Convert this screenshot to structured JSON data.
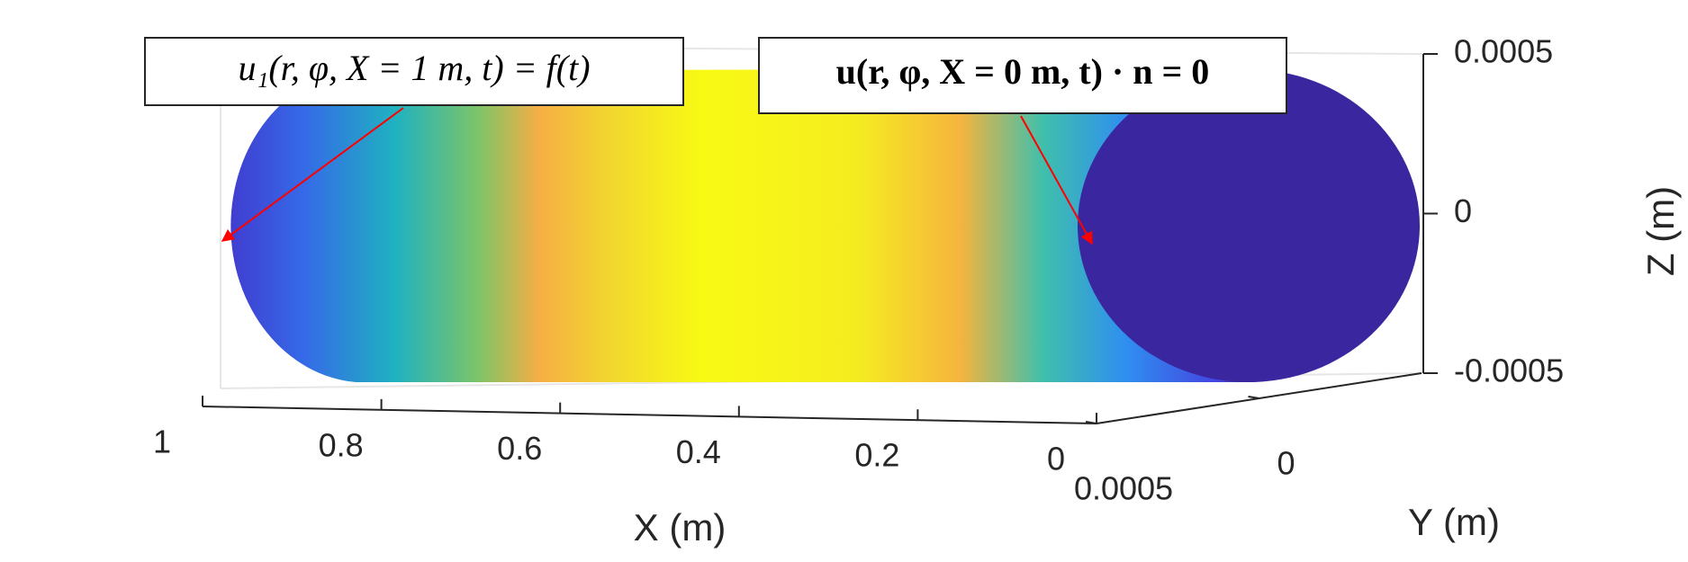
{
  "chart_data": {
    "type": "surface",
    "annotations": [
      "u₁(r, φ, X = 1 m, t) = f(t)",
      "u(r, φ, X = 0 m, t) · n = 0"
    ],
    "xlabel": "X (m)",
    "ylabel": "Y (m)",
    "zlabel": "Z (m)",
    "xlim": [
      0,
      1
    ],
    "xticks": [
      1,
      0.8,
      0.6,
      0.4,
      0.2,
      0
    ],
    "ylim": [
      -0.0005,
      0.0005
    ],
    "yticks": [
      0.0005,
      0
    ],
    "zlim": [
      -0.0005,
      0.0005
    ],
    "zticks": [
      0.0005,
      0,
      -0.0005
    ]
  }
}
